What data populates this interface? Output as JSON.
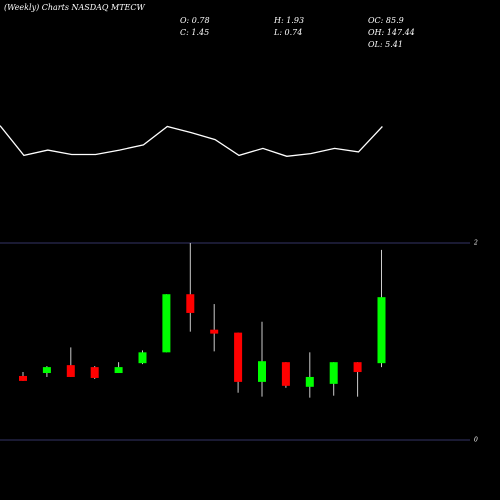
{
  "header": {
    "title": "(Weekly) Charts NASDAQ MTECW",
    "stats": [
      "O: 0.78",
      "H: 1.93",
      "OC: 85.9",
      "C: 1.45",
      "L: 0.74",
      "OH: 147.44",
      "OL: 5.41"
    ]
  },
  "chart_data": [
    {
      "type": "line",
      "color": "#ffffff",
      "values": [
        37,
        3,
        9,
        4,
        4,
        9,
        15,
        36,
        29,
        21,
        3,
        11,
        2,
        5,
        11,
        7,
        36
      ],
      "ylim": [
        0,
        40
      ]
    },
    {
      "type": "candlestick",
      "up_color": "#00ff00",
      "down_color": "#ff0000",
      "grid_color": "#333366",
      "open": [
        0.65,
        0.68,
        0.76,
        0.74,
        0.68,
        0.78,
        0.89,
        1.48,
        1.12,
        1.09,
        0.59,
        0.79,
        0.54,
        0.57,
        0.79,
        0.78
      ],
      "high": [
        0.69,
        0.75,
        0.94,
        0.75,
        0.79,
        0.91,
        1.48,
        2.0,
        1.38,
        1.09,
        1.2,
        0.79,
        0.89,
        0.79,
        0.79,
        1.93
      ],
      "low": [
        0.6,
        0.64,
        0.64,
        0.62,
        0.68,
        0.77,
        0.89,
        1.1,
        0.9,
        0.48,
        0.44,
        0.53,
        0.43,
        0.45,
        0.44,
        0.74
      ],
      "close": [
        0.6,
        0.74,
        0.64,
        0.63,
        0.74,
        0.89,
        1.48,
        1.29,
        1.08,
        0.59,
        0.8,
        0.55,
        0.64,
        0.79,
        0.69,
        1.45
      ],
      "ylim": [
        0,
        2
      ],
      "yticks": [
        0,
        2
      ],
      "grid": true
    }
  ]
}
